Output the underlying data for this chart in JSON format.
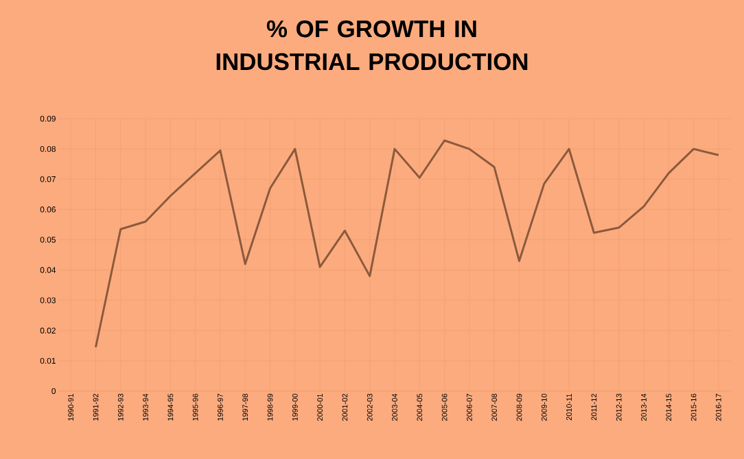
{
  "chart_data": {
    "type": "line",
    "title": "% OF GROWTH IN INDUSTRIAL PRODUCTION",
    "categories": [
      "1990-91",
      "1991-92",
      "1992-93",
      "1993-94",
      "1994-95",
      "1995-96",
      "1996-97",
      "1997-98",
      "1998-99",
      "1999-00",
      "2000-01",
      "2001-02",
      "2002-03",
      "2003-04",
      "2004-05",
      "2005-06",
      "2006-07",
      "2007-08",
      "2008-09",
      "2009-10",
      "2010-11",
      "2011-12",
      "2012-13",
      "2013-14",
      "2014-15",
      "2015-16",
      "2016-17"
    ],
    "values": [
      null,
      0.0145,
      0.0535,
      0.056,
      0.0645,
      0.072,
      0.0795,
      0.042,
      0.067,
      0.08,
      0.041,
      0.053,
      0.038,
      0.08,
      0.0705,
      0.0828,
      0.08,
      0.074,
      0.043,
      0.0685,
      0.08,
      0.0523,
      0.054,
      0.061,
      0.072,
      0.08,
      0.078
    ],
    "color": "#8b5a3c",
    "ylim": [
      0,
      0.09
    ],
    "yticks": [
      0,
      0.01,
      0.02,
      0.03,
      0.04,
      0.05,
      0.06,
      0.07,
      0.08,
      0.09
    ],
    "grid": true,
    "marker": "none",
    "line_style": "solid"
  }
}
